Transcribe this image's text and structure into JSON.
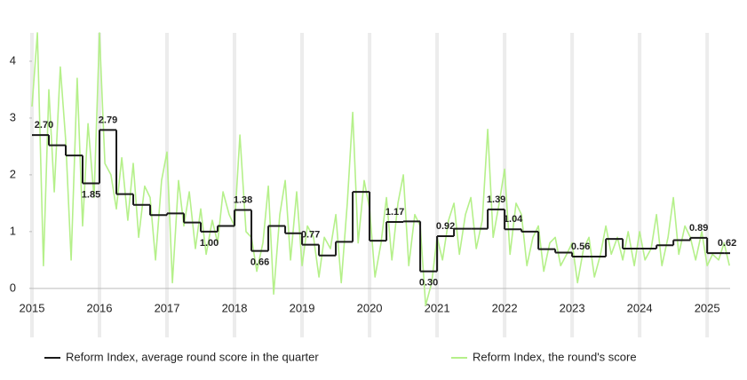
{
  "chart_data": {
    "type": "line",
    "xlim": [
      2015,
      2025.34
    ],
    "xticks": [
      2015,
      2016,
      2017,
      2018,
      2019,
      2020,
      2021,
      2022,
      2023,
      2024,
      2025
    ],
    "ylim": [
      -0.3,
      4.5
    ],
    "yticks": [
      0,
      1,
      2,
      3,
      4
    ],
    "grid": "x",
    "series": [
      {
        "name": "Reform Index, average round score in the quarter",
        "color": "#1a1a1a",
        "step": true,
        "x": [
          2015,
          2015.25,
          2015.5,
          2015.75,
          2016,
          2016.25,
          2016.5,
          2016.75,
          2017,
          2017.25,
          2017.5,
          2017.75,
          2018,
          2018.25,
          2018.5,
          2018.75,
          2019,
          2019.25,
          2019.5,
          2019.75,
          2020,
          2020.25,
          2020.5,
          2020.75,
          2021,
          2021.25,
          2021.5,
          2021.75,
          2022,
          2022.25,
          2022.5,
          2022.75,
          2023,
          2023.25,
          2023.5,
          2023.75,
          2024,
          2024.25,
          2024.5,
          2024.75,
          2025,
          2025.25
        ],
        "values": [
          2.7,
          2.52,
          2.34,
          1.85,
          2.79,
          1.66,
          1.47,
          1.29,
          1.32,
          1.16,
          1.0,
          1.1,
          1.38,
          0.66,
          1.1,
          0.97,
          0.77,
          0.58,
          0.82,
          1.7,
          0.84,
          1.17,
          1.18,
          0.3,
          0.92,
          1.05,
          1.05,
          1.39,
          1.04,
          1.0,
          0.69,
          0.63,
          0.56,
          0.56,
          0.87,
          0.7,
          0.7,
          0.76,
          0.85,
          0.89,
          0.62,
          0.62
        ],
        "value_labels": [
          "2.70",
          null,
          null,
          "1.85",
          "2.79",
          null,
          null,
          null,
          null,
          null,
          "1.00",
          null,
          "1.38",
          "0.66",
          null,
          null,
          "0.77",
          null,
          null,
          null,
          null,
          "1.17",
          null,
          "0.30",
          "0.92",
          null,
          null,
          "1.39",
          "1.04",
          null,
          null,
          null,
          "0.56",
          null,
          null,
          null,
          null,
          null,
          null,
          "0.89",
          null,
          "0.62"
        ]
      },
      {
        "name": "Reform Index, the round's score",
        "color": "#b5f08a",
        "x": [
          2015,
          2015.08,
          2015.17,
          2015.25,
          2015.33,
          2015.42,
          2015.5,
          2015.58,
          2015.67,
          2015.75,
          2015.83,
          2015.92,
          2016,
          2016.08,
          2016.17,
          2016.25,
          2016.33,
          2016.42,
          2016.5,
          2016.58,
          2016.67,
          2016.75,
          2016.83,
          2016.92,
          2017,
          2017.08,
          2017.17,
          2017.25,
          2017.33,
          2017.42,
          2017.5,
          2017.58,
          2017.67,
          2017.75,
          2017.83,
          2017.92,
          2018,
          2018.08,
          2018.17,
          2018.25,
          2018.33,
          2018.42,
          2018.5,
          2018.58,
          2018.67,
          2018.75,
          2018.83,
          2018.92,
          2019,
          2019.08,
          2019.17,
          2019.25,
          2019.33,
          2019.42,
          2019.5,
          2019.58,
          2019.67,
          2019.75,
          2019.83,
          2019.92,
          2020,
          2020.08,
          2020.17,
          2020.25,
          2020.33,
          2020.42,
          2020.5,
          2020.58,
          2020.67,
          2020.75,
          2020.83,
          2020.92,
          2021,
          2021.08,
          2021.17,
          2021.25,
          2021.33,
          2021.42,
          2021.5,
          2021.58,
          2021.67,
          2021.75,
          2021.83,
          2021.92,
          2022,
          2022.08,
          2022.17,
          2022.25,
          2022.33,
          2022.42,
          2022.5,
          2022.58,
          2022.67,
          2022.75,
          2022.83,
          2022.92,
          2023,
          2023.08,
          2023.17,
          2023.25,
          2023.33,
          2023.42,
          2023.5,
          2023.58,
          2023.67,
          2023.75,
          2023.83,
          2023.92,
          2024,
          2024.08,
          2024.17,
          2024.25,
          2024.33,
          2024.42,
          2024.5,
          2024.58,
          2024.67,
          2024.75,
          2024.83,
          2024.92,
          2025,
          2025.08,
          2025.17,
          2025.25,
          2025.33
        ],
        "values": [
          3.2,
          4.5,
          0.4,
          3.5,
          1.7,
          3.9,
          2.6,
          0.5,
          3.7,
          1.1,
          2.9,
          1.6,
          4.5,
          2.2,
          2.0,
          1.4,
          2.3,
          1.2,
          2.2,
          0.9,
          1.8,
          1.6,
          0.5,
          1.9,
          2.4,
          0.1,
          1.9,
          1.1,
          1.7,
          0.7,
          1.4,
          0.6,
          1.2,
          0.8,
          1.7,
          1.3,
          1.1,
          2.7,
          1.0,
          0.9,
          0.3,
          0.8,
          1.8,
          -0.1,
          1.3,
          1.9,
          0.5,
          1.7,
          0.4,
          1.1,
          0.9,
          0.2,
          0.9,
          0.7,
          1.3,
          0.1,
          1.5,
          3.1,
          0.8,
          1.9,
          1.4,
          0.2,
          0.8,
          1.6,
          0.5,
          1.5,
          2.0,
          0.4,
          1.3,
          1.1,
          -0.3,
          0.1,
          0.9,
          0.5,
          1.2,
          1.5,
          0.6,
          1.3,
          1.6,
          0.7,
          1.2,
          2.8,
          0.9,
          1.5,
          2.1,
          0.6,
          1.5,
          1.3,
          0.4,
          0.9,
          1.1,
          0.3,
          0.8,
          0.9,
          0.4,
          0.6,
          0.8,
          0.1,
          0.7,
          0.9,
          0.2,
          0.6,
          1.1,
          0.6,
          0.9,
          0.5,
          1.0,
          0.4,
          1.0,
          0.5,
          0.7,
          1.3,
          0.4,
          0.9,
          1.6,
          0.6,
          1.1,
          0.9,
          0.5,
          1.0,
          0.4,
          0.6,
          0.5,
          0.8,
          0.4
        ]
      }
    ]
  }
}
